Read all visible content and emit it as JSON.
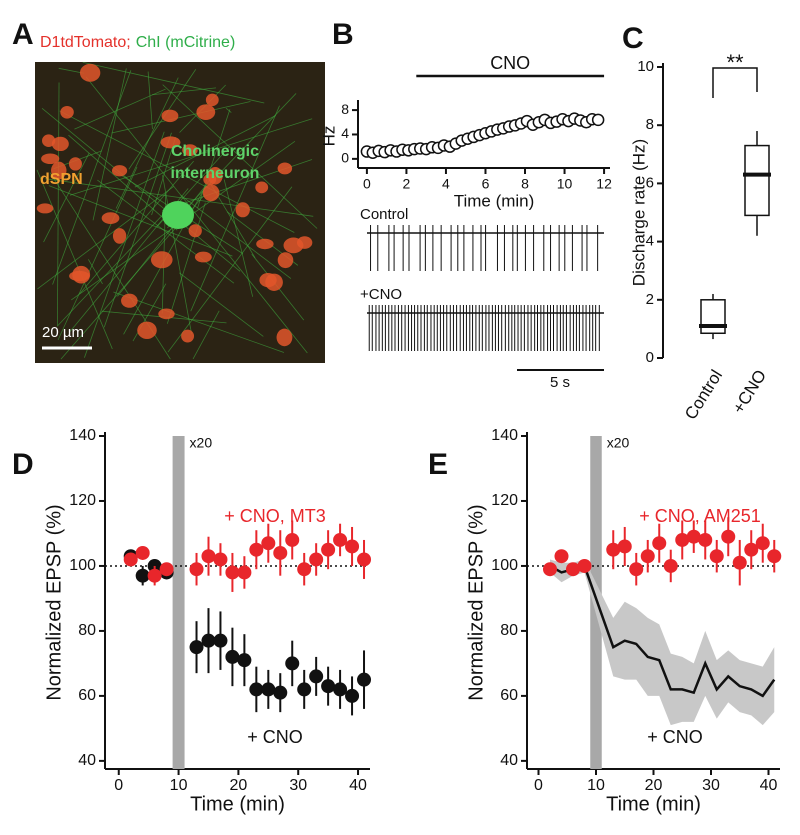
{
  "chart_data": [
    {
      "type": "image",
      "panel": "A",
      "title_parts": [
        {
          "text": "D1tdTomato;",
          "color": "#e4312b"
        },
        {
          "text": "ChI (mCitrine)",
          "color": "#2fae4a"
        }
      ],
      "cell_label": "dSPN",
      "neuron_label": [
        "Cholinergic",
        "interneuron"
      ],
      "scale_bar": "20 µm"
    },
    {
      "type": "scatter",
      "panel": "B",
      "xlabel": "Time (min)",
      "ylabel": "Hz",
      "x": [
        0,
        0.3,
        0.6,
        0.9,
        1.2,
        1.5,
        1.8,
        2.1,
        2.4,
        2.7,
        3,
        3.3,
        3.6,
        3.9,
        4.2,
        4.5,
        4.8,
        5.1,
        5.4,
        5.7,
        6,
        6.3,
        6.6,
        6.9,
        7.2,
        7.5,
        7.8,
        8.1,
        8.4,
        8.7,
        9,
        9.3,
        9.6,
        9.9,
        10.2,
        10.5,
        10.8,
        11.1,
        11.4,
        11.7
      ],
      "values": [
        1.2,
        1.0,
        1.3,
        1.1,
        1.4,
        1.2,
        1.5,
        1.4,
        1.6,
        1.7,
        1.6,
        1.9,
        1.8,
        2.2,
        2.0,
        2.5,
        3.0,
        3.3,
        3.6,
        3.9,
        4.2,
        4.5,
        4.8,
        5.0,
        5.3,
        5.5,
        5.8,
        6.2,
        5.6,
        6.0,
        6.4,
        5.9,
        6.1,
        6.5,
        6.2,
        6.6,
        6.3,
        6.0,
        6.5,
        6.4
      ],
      "xlim": [
        -0.45,
        12.3
      ],
      "xticks": [
        0,
        2,
        4,
        6,
        8,
        10,
        12
      ],
      "ylim": [
        -1.5,
        9
      ],
      "yticks": [
        0,
        4,
        8
      ],
      "treatment": "CNO",
      "treatment_period": [
        2.5,
        12
      ],
      "traces": [
        "Control",
        "+CNO"
      ],
      "trace_scale": "5 s"
    },
    {
      "type": "box",
      "panel": "C",
      "ylabel": "Discharge rate (Hz)",
      "significance": "**",
      "categories": [
        "Control",
        "+CNO"
      ],
      "min": [
        0.65,
        4.2
      ],
      "q1": [
        0.85,
        4.9
      ],
      "median": [
        1.1,
        6.3
      ],
      "q3": [
        2.0,
        7.3
      ],
      "max": [
        2.2,
        7.8
      ],
      "ylim": [
        0,
        10
      ],
      "yticks": [
        0,
        2,
        4,
        6,
        8,
        10
      ]
    },
    {
      "type": "errorscatter",
      "panel": "D",
      "xlabel": "Time (min)",
      "ylabel": "Normalized EPSP (%)",
      "xlim": [
        -2.3,
        42
      ],
      "xticks": [
        0,
        10,
        20,
        30,
        40
      ],
      "ylim": [
        37.5,
        140
      ],
      "yticks": [
        40,
        60,
        80,
        100,
        120,
        140
      ],
      "reference_line": 100,
      "gap": [
        9,
        11
      ],
      "gap_label": "x20",
      "x": [
        2,
        4,
        6,
        8,
        13,
        15,
        17,
        19,
        21,
        23,
        25,
        27,
        29,
        31,
        33,
        35,
        37,
        39,
        41
      ],
      "series": [
        {
          "name": "+ CNO, MT3",
          "color": "#e8262b",
          "kind": "points",
          "values": [
            102,
            104,
            97,
            99,
            99,
            103,
            102,
            98,
            98,
            105,
            107,
            104,
            108,
            99,
            102,
            105,
            108,
            106,
            102
          ],
          "errors": [
            2,
            2,
            3,
            2,
            5,
            6,
            5,
            6,
            5,
            6,
            6,
            7,
            6,
            5,
            5,
            6,
            5,
            6,
            6
          ]
        },
        {
          "name": "+ CNO",
          "color": "#111111",
          "kind": "points",
          "values": [
            103,
            97,
            100,
            98,
            75,
            77,
            77,
            72,
            71,
            62,
            62,
            61,
            70,
            62,
            66,
            63,
            62,
            60,
            65
          ],
          "errors": [
            2,
            3,
            2,
            2,
            8,
            10,
            9,
            9,
            8,
            7,
            6,
            6,
            7,
            6,
            6,
            6,
            6,
            6,
            9
          ]
        }
      ]
    },
    {
      "type": "errorscatter",
      "panel": "E",
      "xlabel": "Time (min)",
      "ylabel": "Normalized EPSP (%)",
      "xlim": [
        -2,
        42
      ],
      "xticks": [
        0,
        10,
        20,
        30,
        40
      ],
      "ylim": [
        37.5,
        140
      ],
      "yticks": [
        40,
        60,
        80,
        100,
        120,
        140
      ],
      "reference_line": 100,
      "gap": [
        9,
        11
      ],
      "gap_label": "x20",
      "x": [
        2,
        4,
        6,
        8,
        13,
        15,
        17,
        19,
        21,
        23,
        25,
        27,
        29,
        31,
        33,
        35,
        37,
        39,
        41
      ],
      "series": [
        {
          "name": "+ CNO, AM251",
          "color": "#e8262b",
          "kind": "points",
          "values": [
            99,
            103,
            99,
            100,
            105,
            106,
            99,
            103,
            107,
            100,
            108,
            109,
            108,
            103,
            109,
            101,
            105,
            107,
            103
          ],
          "errors": [
            2,
            2,
            2,
            2,
            6,
            6,
            5,
            5,
            6,
            5,
            6,
            5,
            6,
            5,
            6,
            7,
            6,
            6,
            5
          ]
        },
        {
          "name": "+ CNO",
          "color": "#111111",
          "kind": "band",
          "values": [
            100,
            98,
            99,
            100,
            75,
            77,
            76,
            72,
            71,
            62,
            62,
            61,
            70,
            62,
            66,
            63,
            62,
            60,
            65
          ],
          "errors": [
            2,
            3,
            2,
            2,
            9,
            12,
            11,
            12,
            11,
            11,
            10,
            9,
            10,
            9,
            8,
            8,
            8,
            9,
            10
          ]
        }
      ]
    }
  ]
}
